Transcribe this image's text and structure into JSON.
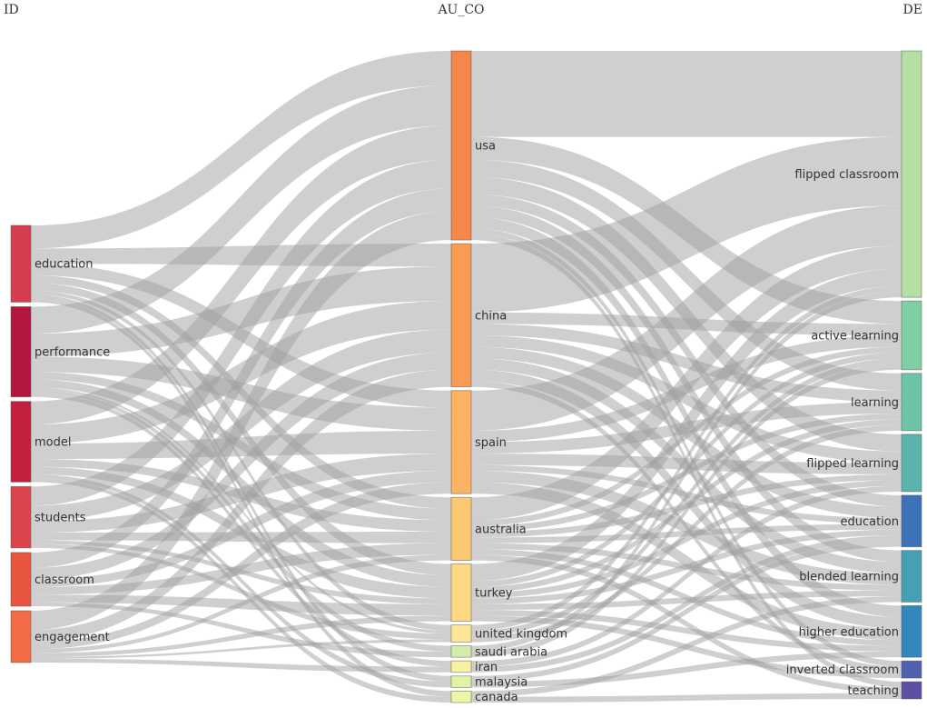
{
  "chart_data": {
    "type": "sankey",
    "column_titles": [
      "ID",
      "AU_CO",
      "DE"
    ],
    "columns": [
      [
        {
          "id": "education",
          "label": "education",
          "color": "#d53e4f"
        },
        {
          "id": "performance",
          "label": "performance",
          "color": "#b3163f"
        },
        {
          "id": "model",
          "label": "model",
          "color": "#c1203f"
        },
        {
          "id": "students",
          "label": "students",
          "color": "#dc454b"
        },
        {
          "id": "classroom",
          "label": "classroom",
          "color": "#e8563f"
        },
        {
          "id": "engagement",
          "label": "engagement",
          "color": "#f36c45"
        }
      ],
      [
        {
          "id": "usa",
          "label": "usa",
          "color": "#f6874b"
        },
        {
          "id": "china",
          "label": "china",
          "color": "#f89b53"
        },
        {
          "id": "spain",
          "label": "spain",
          "color": "#fbb262"
        },
        {
          "id": "australia",
          "label": "australia",
          "color": "#fdc872"
        },
        {
          "id": "turkey",
          "label": "turkey",
          "color": "#fdd883"
        },
        {
          "id": "united_kingdom",
          "label": "united kingdom",
          "color": "#fee698"
        },
        {
          "id": "saudi_arabia",
          "label": "saudi arabia",
          "color": "#d4edab"
        },
        {
          "id": "iran",
          "label": "iran",
          "color": "#f7f29d"
        },
        {
          "id": "malaysia",
          "label": "malaysia",
          "color": "#e3f3a5"
        },
        {
          "id": "canada",
          "label": "canada",
          "color": "#eef7a3"
        }
      ],
      [
        {
          "id": "flipped_classroom",
          "label": "flipped classroom",
          "color": "#b4e0a2"
        },
        {
          "id": "active_learning",
          "label": "active learning",
          "color": "#80cfa4"
        },
        {
          "id": "learning",
          "label": "learning",
          "color": "#6cc3a6"
        },
        {
          "id": "flipped_learning",
          "label": "flipped learning",
          "color": "#5ab4ab"
        },
        {
          "id": "de_education",
          "label": "education",
          "color": "#3c72b8"
        },
        {
          "id": "blended_learning",
          "label": "blended learning",
          "color": "#469fb5"
        },
        {
          "id": "higher_education",
          "label": "higher education",
          "color": "#3288bd"
        },
        {
          "id": "inverted_classroom",
          "label": "inverted classroom",
          "color": "#4e62b0"
        },
        {
          "id": "teaching",
          "label": "teaching",
          "color": "#5e4fa2"
        }
      ]
    ],
    "links": [
      {
        "source": "education",
        "target": "usa",
        "value": 6
      },
      {
        "source": "education",
        "target": "china",
        "value": 4
      },
      {
        "source": "education",
        "target": "spain",
        "value": 3
      },
      {
        "source": "education",
        "target": "australia",
        "value": 2
      },
      {
        "source": "education",
        "target": "turkey",
        "value": 2
      },
      {
        "source": "education",
        "target": "united_kingdom",
        "value": 1
      },
      {
        "source": "education",
        "target": "malaysia",
        "value": 1
      },
      {
        "source": "education",
        "target": "canada",
        "value": 1
      },
      {
        "source": "performance",
        "target": "usa",
        "value": 7
      },
      {
        "source": "performance",
        "target": "china",
        "value": 6
      },
      {
        "source": "performance",
        "target": "spain",
        "value": 4
      },
      {
        "source": "performance",
        "target": "australia",
        "value": 2
      },
      {
        "source": "performance",
        "target": "turkey",
        "value": 2
      },
      {
        "source": "performance",
        "target": "saudi_arabia",
        "value": 1
      },
      {
        "source": "performance",
        "target": "iran",
        "value": 1
      },
      {
        "source": "performance",
        "target": "united_kingdom",
        "value": 0.5
      },
      {
        "source": "model",
        "target": "usa",
        "value": 6
      },
      {
        "source": "model",
        "target": "china",
        "value": 5
      },
      {
        "source": "model",
        "target": "spain",
        "value": 4
      },
      {
        "source": "model",
        "target": "australia",
        "value": 2
      },
      {
        "source": "model",
        "target": "turkey",
        "value": 2
      },
      {
        "source": "model",
        "target": "malaysia",
        "value": 1
      },
      {
        "source": "model",
        "target": "canada",
        "value": 1
      },
      {
        "source": "students",
        "target": "usa",
        "value": 5
      },
      {
        "source": "students",
        "target": "china",
        "value": 4
      },
      {
        "source": "students",
        "target": "spain",
        "value": 3
      },
      {
        "source": "students",
        "target": "australia",
        "value": 2
      },
      {
        "source": "students",
        "target": "turkey",
        "value": 1
      },
      {
        "source": "students",
        "target": "united_kingdom",
        "value": 1
      },
      {
        "source": "classroom",
        "target": "usa",
        "value": 4
      },
      {
        "source": "classroom",
        "target": "china",
        "value": 3
      },
      {
        "source": "classroom",
        "target": "spain",
        "value": 2
      },
      {
        "source": "classroom",
        "target": "australia",
        "value": 2
      },
      {
        "source": "classroom",
        "target": "turkey",
        "value": 2
      },
      {
        "source": "classroom",
        "target": "saudi_arabia",
        "value": 1
      },
      {
        "source": "engagement",
        "target": "usa",
        "value": 5
      },
      {
        "source": "engagement",
        "target": "china",
        "value": 3
      },
      {
        "source": "engagement",
        "target": "spain",
        "value": 2
      },
      {
        "source": "engagement",
        "target": "australia",
        "value": 1
      },
      {
        "source": "engagement",
        "target": "turkey",
        "value": 1
      },
      {
        "source": "engagement",
        "target": "iran",
        "value": 1
      },
      {
        "source": "engagement",
        "target": "united_kingdom",
        "value": 0.5
      },
      {
        "source": "usa",
        "target": "flipped_classroom",
        "value": 15
      },
      {
        "source": "usa",
        "target": "active_learning",
        "value": 4
      },
      {
        "source": "usa",
        "target": "learning",
        "value": 3
      },
      {
        "source": "usa",
        "target": "flipped_learning",
        "value": 3
      },
      {
        "source": "usa",
        "target": "de_education",
        "value": 2
      },
      {
        "source": "usa",
        "target": "blended_learning",
        "value": 2
      },
      {
        "source": "usa",
        "target": "higher_education",
        "value": 2
      },
      {
        "source": "usa",
        "target": "inverted_classroom",
        "value": 1
      },
      {
        "source": "usa",
        "target": "teaching",
        "value": 1
      },
      {
        "source": "china",
        "target": "flipped_classroom",
        "value": 12
      },
      {
        "source": "china",
        "target": "active_learning",
        "value": 2
      },
      {
        "source": "china",
        "target": "learning",
        "value": 2
      },
      {
        "source": "china",
        "target": "flipped_learning",
        "value": 2
      },
      {
        "source": "china",
        "target": "de_education",
        "value": 2
      },
      {
        "source": "china",
        "target": "blended_learning",
        "value": 2
      },
      {
        "source": "china",
        "target": "higher_education",
        "value": 2
      },
      {
        "source": "china",
        "target": "inverted_classroom",
        "value": 1
      },
      {
        "source": "spain",
        "target": "flipped_classroom",
        "value": 7
      },
      {
        "source": "spain",
        "target": "active_learning",
        "value": 2
      },
      {
        "source": "spain",
        "target": "learning",
        "value": 2
      },
      {
        "source": "spain",
        "target": "flipped_learning",
        "value": 2
      },
      {
        "source": "spain",
        "target": "de_education",
        "value": 1
      },
      {
        "source": "spain",
        "target": "blended_learning",
        "value": 2
      },
      {
        "source": "spain",
        "target": "higher_education",
        "value": 2
      },
      {
        "source": "australia",
        "target": "flipped_classroom",
        "value": 4
      },
      {
        "source": "australia",
        "target": "active_learning",
        "value": 1
      },
      {
        "source": "australia",
        "target": "learning",
        "value": 1
      },
      {
        "source": "australia",
        "target": "flipped_learning",
        "value": 1
      },
      {
        "source": "australia",
        "target": "de_education",
        "value": 1
      },
      {
        "source": "australia",
        "target": "blended_learning",
        "value": 1
      },
      {
        "source": "australia",
        "target": "higher_education",
        "value": 1
      },
      {
        "source": "australia",
        "target": "teaching",
        "value": 1
      },
      {
        "source": "turkey",
        "target": "flipped_classroom",
        "value": 3
      },
      {
        "source": "turkey",
        "target": "active_learning",
        "value": 1
      },
      {
        "source": "turkey",
        "target": "learning",
        "value": 1
      },
      {
        "source": "turkey",
        "target": "flipped_learning",
        "value": 1
      },
      {
        "source": "turkey",
        "target": "de_education",
        "value": 1
      },
      {
        "source": "turkey",
        "target": "blended_learning",
        "value": 1
      },
      {
        "source": "turkey",
        "target": "higher_education",
        "value": 1
      },
      {
        "source": "turkey",
        "target": "inverted_classroom",
        "value": 1
      },
      {
        "source": "united_kingdom",
        "target": "flipped_classroom",
        "value": 1
      },
      {
        "source": "united_kingdom",
        "target": "active_learning",
        "value": 1
      },
      {
        "source": "united_kingdom",
        "target": "learning",
        "value": 1
      },
      {
        "source": "saudi_arabia",
        "target": "flipped_classroom",
        "value": 1
      },
      {
        "source": "saudi_arabia",
        "target": "active_learning",
        "value": 1
      },
      {
        "source": "iran",
        "target": "flipped_learning",
        "value": 1
      },
      {
        "source": "iran",
        "target": "de_education",
        "value": 1
      },
      {
        "source": "malaysia",
        "target": "de_education",
        "value": 1
      },
      {
        "source": "malaysia",
        "target": "higher_education",
        "value": 1
      },
      {
        "source": "canada",
        "target": "blended_learning",
        "value": 1
      },
      {
        "source": "canada",
        "target": "teaching",
        "value": 1
      }
    ]
  }
}
